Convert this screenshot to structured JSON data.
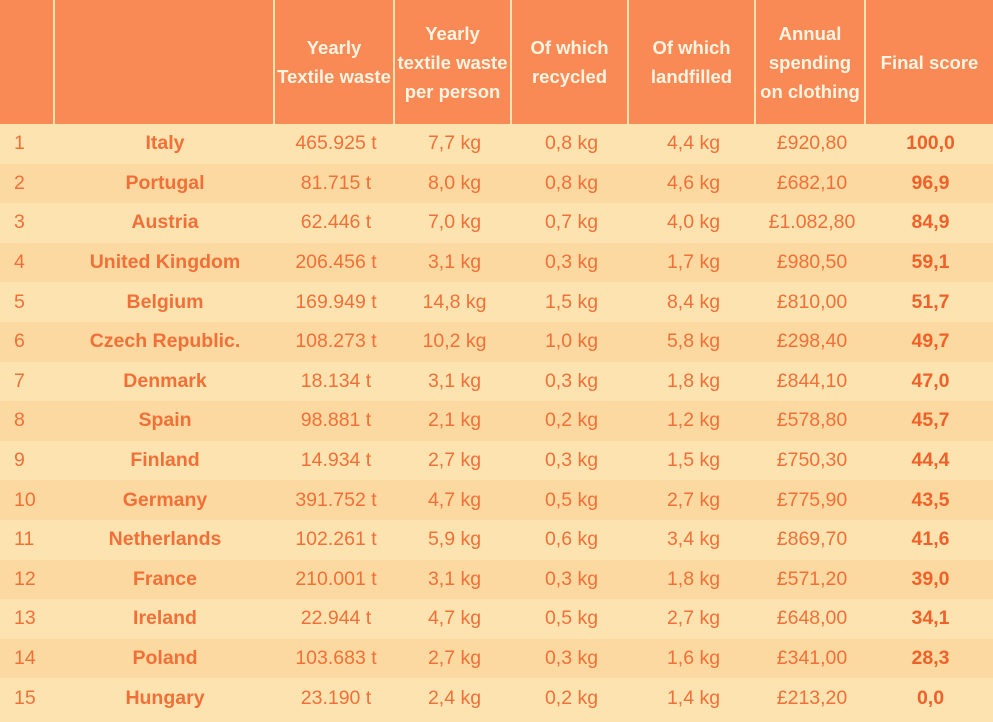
{
  "chart_data": {
    "type": "table",
    "columns": [
      "",
      "",
      "Yearly Textile waste",
      "Yearly textile waste per person",
      "Of which recycled",
      "Of which landfilled",
      "Annual spending on clothing",
      "Final score"
    ],
    "rows": [
      {
        "rank": "1",
        "country": "Italy",
        "waste": "465.925 t",
        "per_person": "7,7 kg",
        "recycled": "0,8 kg",
        "landfilled": "4,4 kg",
        "spending": "£920,80",
        "score": "100,0"
      },
      {
        "rank": "2",
        "country": "Portugal",
        "waste": "81.715 t",
        "per_person": "8,0 kg",
        "recycled": "0,8 kg",
        "landfilled": "4,6 kg",
        "spending": "£682,10",
        "score": "96,9"
      },
      {
        "rank": "3",
        "country": "Austria",
        "waste": "62.446 t",
        "per_person": "7,0 kg",
        "recycled": "0,7 kg",
        "landfilled": "4,0 kg",
        "spending": "£1.082,80",
        "score": "84,9"
      },
      {
        "rank": "4",
        "country": "United Kingdom",
        "waste": "206.456 t",
        "per_person": "3,1 kg",
        "recycled": "0,3 kg",
        "landfilled": "1,7 kg",
        "spending": "£980,50",
        "score": "59,1"
      },
      {
        "rank": "5",
        "country": "Belgium",
        "waste": "169.949 t",
        "per_person": "14,8 kg",
        "recycled": "1,5 kg",
        "landfilled": "8,4 kg",
        "spending": "£810,00",
        "score": "51,7"
      },
      {
        "rank": "6",
        "country": "Czech Republic.",
        "waste": "108.273 t",
        "per_person": "10,2 kg",
        "recycled": "1,0 kg",
        "landfilled": "5,8 kg",
        "spending": "£298,40",
        "score": "49,7"
      },
      {
        "rank": "7",
        "country": "Denmark",
        "waste": "18.134 t",
        "per_person": "3,1 kg",
        "recycled": "0,3 kg",
        "landfilled": "1,8 kg",
        "spending": "£844,10",
        "score": "47,0"
      },
      {
        "rank": "8",
        "country": "Spain",
        "waste": "98.881 t",
        "per_person": "2,1 kg",
        "recycled": "0,2 kg",
        "landfilled": "1,2 kg",
        "spending": "£578,80",
        "score": "45,7"
      },
      {
        "rank": "9",
        "country": "Finland",
        "waste": "14.934 t",
        "per_person": "2,7 kg",
        "recycled": "0,3 kg",
        "landfilled": "1,5 kg",
        "spending": "£750,30",
        "score": "44,4"
      },
      {
        "rank": "10",
        "country": "Germany",
        "waste": "391.752 t",
        "per_person": "4,7 kg",
        "recycled": "0,5 kg",
        "landfilled": "2,7 kg",
        "spending": "£775,90",
        "score": "43,5"
      },
      {
        "rank": "11",
        "country": "Netherlands",
        "waste": "102.261 t",
        "per_person": "5,9 kg",
        "recycled": "0,6 kg",
        "landfilled": "3,4 kg",
        "spending": "£869,70",
        "score": "41,6"
      },
      {
        "rank": "12",
        "country": "France",
        "waste": "210.001 t",
        "per_person": "3,1 kg",
        "recycled": "0,3 kg",
        "landfilled": "1,8 kg",
        "spending": "£571,20",
        "score": "39,0"
      },
      {
        "rank": "13",
        "country": "Ireland",
        "waste": "22.944 t",
        "per_person": "4,7 kg",
        "recycled": "0,5 kg",
        "landfilled": "2,7 kg",
        "spending": "£648,00",
        "score": "34,1"
      },
      {
        "rank": "14",
        "country": "Poland",
        "waste": "103.683 t",
        "per_person": "2,7 kg",
        "recycled": "0,3 kg",
        "landfilled": "1,6 kg",
        "spending": "£341,00",
        "score": "28,3"
      },
      {
        "rank": "15",
        "country": "Hungary",
        "waste": "23.190 t",
        "per_person": "2,4 kg",
        "recycled": "0,2 kg",
        "landfilled": "1,4 kg",
        "spending": "£213,20",
        "score": "0,0"
      }
    ]
  },
  "colors": {
    "header_bg": "#fa8a55",
    "header_text": "#fff4e2",
    "row_bg_odd": "#fde3b0",
    "row_bg_even": "#fcd9a0",
    "cell_text": "#f27038"
  }
}
